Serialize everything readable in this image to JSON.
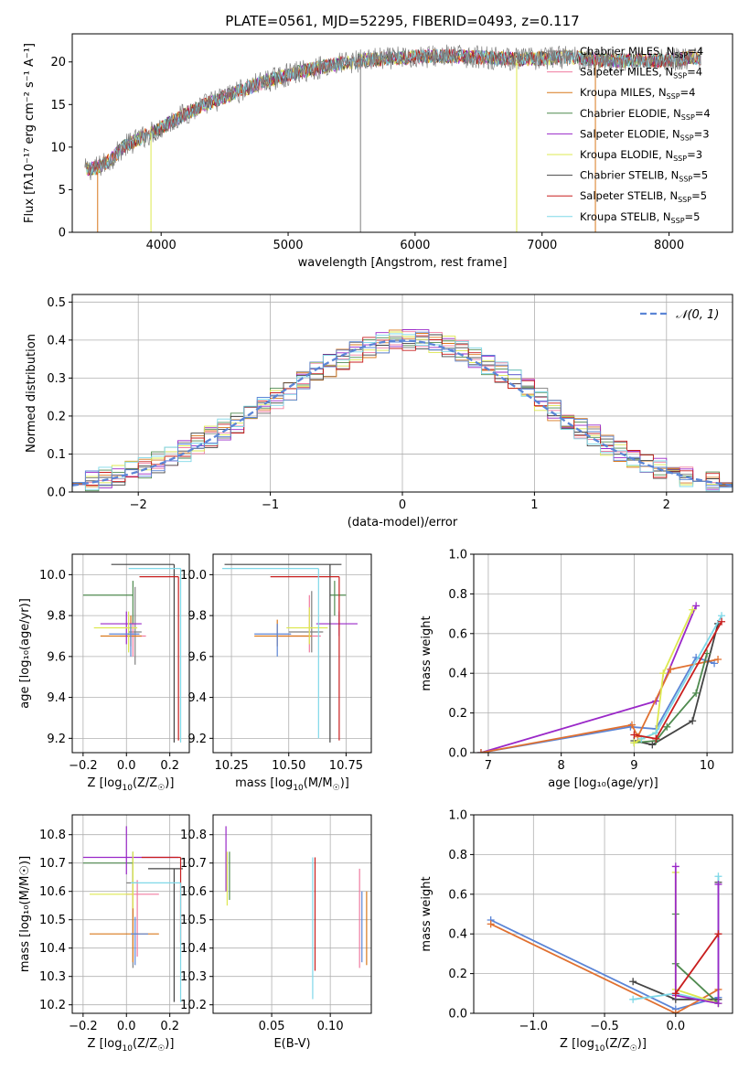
{
  "figure": {
    "title": "PLATE=0561, MJD=52295, FIBERID=0493, z=0.117"
  },
  "colors": {
    "series": [
      "#7f7f7f",
      "#f07ca0",
      "#d8781c",
      "#4f8a4f",
      "#9a28c8",
      "#dde850",
      "#444444",
      "#c81e1e",
      "#7fd8e8"
    ],
    "extra": [
      "#5b85d6",
      "#e07030"
    ],
    "grid": "#b0b0b0",
    "normal_curve": "#5b85d6"
  },
  "chart_data": [
    {
      "id": "spectrum",
      "type": "line",
      "xlabel": "wavelength [Angstrom, rest frame]",
      "ylabel": "Flux [fλ10⁻¹⁷ erg cm⁻² s⁻¹ A⁻¹]",
      "xlim": [
        3300,
        8500
      ],
      "ylim": [
        0,
        23.3
      ],
      "xticks": [
        4000,
        5000,
        6000,
        7000,
        8000
      ],
      "yticks": [
        0,
        5,
        10,
        15,
        20
      ],
      "grid": false,
      "legend_position": "upper right",
      "continuum": {
        "x": [
          3400,
          3500,
          3600,
          3700,
          3800,
          3900,
          4000,
          4200,
          4400,
          4600,
          4800,
          5000,
          5200,
          5400,
          5600,
          5800,
          6000,
          6200,
          6400,
          6600,
          6800,
          7000,
          7200,
          7400,
          7600,
          7800,
          8000,
          8200,
          8250
        ],
        "y": [
          7.3,
          7.6,
          8.5,
          10.0,
          10.8,
          11.5,
          12.3,
          14.0,
          15.3,
          16.5,
          17.6,
          18.5,
          19.2,
          19.8,
          20.2,
          20.4,
          20.6,
          20.7,
          20.6,
          20.5,
          20.3,
          20.4,
          20.6,
          20.3,
          20.1,
          20.2,
          20.2,
          20.5,
          20.3
        ]
      },
      "drops": [
        {
          "x": 3500,
          "series": 2
        },
        {
          "x": 3920,
          "series": 5
        },
        {
          "x": 5570,
          "series": 0
        },
        {
          "x": 6800,
          "series": 5
        },
        {
          "x": 7420,
          "series": 2
        }
      ],
      "series": [
        {
          "name": "Chabrier MILES, N_SSP=4",
          "label_main": "Chabrier MILES, N",
          "label_sub": "SSP",
          "label_end": "=4"
        },
        {
          "name": "Salpeter MILES, N_SSP=4",
          "label_main": "Salpeter MILES, N",
          "label_sub": "SSP",
          "label_end": "=4"
        },
        {
          "name": "Kroupa MILES, N_SSP=4",
          "label_main": "Kroupa MILES, N",
          "label_sub": "SSP",
          "label_end": "=4"
        },
        {
          "name": "Chabrier ELODIE, N_SSP=4",
          "label_main": "Chabrier ELODIE, N",
          "label_sub": "SSP",
          "label_end": "=4"
        },
        {
          "name": "Salpeter ELODIE, N_SSP=3",
          "label_main": "Salpeter ELODIE, N",
          "label_sub": "SSP",
          "label_end": "=3"
        },
        {
          "name": "Kroupa ELODIE, N_SSP=3",
          "label_main": "Kroupa ELODIE, N",
          "label_sub": "SSP",
          "label_end": "=3"
        },
        {
          "name": "Chabrier STELIB, N_SSP=5",
          "label_main": "Chabrier STELIB, N",
          "label_sub": "SSP",
          "label_end": "=5"
        },
        {
          "name": "Salpeter STELIB, N_SSP=5",
          "label_main": "Salpeter STELIB, N",
          "label_sub": "SSP",
          "label_end": "=5"
        },
        {
          "name": "Kroupa STELIB, N_SSP=5",
          "label_main": "Kroupa STELIB, N",
          "label_sub": "SSP",
          "label_end": "=5"
        }
      ]
    },
    {
      "id": "residuals",
      "type": "histogram",
      "xlabel": "(data-model)/error",
      "ylabel": "Normed distribution",
      "xlim": [
        -2.5,
        2.5
      ],
      "ylim": [
        0,
        0.52
      ],
      "xticks": [
        -2,
        -1,
        0,
        1,
        2
      ],
      "yticks": [
        0.0,
        0.1,
        0.2,
        0.3,
        0.4,
        0.5
      ],
      "grid": true,
      "legend_position": "upper right",
      "legend": "𝒩(0, 1)",
      "bin_width": 0.1,
      "reference_curve": "normal(0,1)"
    },
    {
      "id": "age-vs-Z",
      "type": "errorbar",
      "xlabel_main": "Z [log",
      "xlabel_tail": "(Z/Z",
      "ylabel": "age  [log₁₀(age/yr)]",
      "xlim": [
        -0.25,
        0.29
      ],
      "ylim": [
        9.13,
        10.1
      ],
      "xticks": [
        -0.2,
        0.0,
        0.2
      ],
      "yticks": [
        9.2,
        9.4,
        9.6,
        9.8,
        10.0
      ],
      "grid": true,
      "points": [
        {
          "x": 0.04,
          "y": 9.72,
          "xerr": [
            0.03,
            0.03
          ],
          "yerr": [
            0.16,
            0.22
          ],
          "c": 0
        },
        {
          "x": 0.03,
          "y": 9.7,
          "xerr": [
            0.06,
            0.06
          ],
          "yerr": [
            0.1,
            0.1
          ],
          "c": 1
        },
        {
          "x": 0.02,
          "y": 9.7,
          "xerr": [
            0.14,
            0.05
          ],
          "yerr": [
            0.05,
            0.1
          ],
          "c": 2
        },
        {
          "x": 0.03,
          "y": 9.9,
          "xerr": [
            0.23,
            0.0
          ],
          "yerr": [
            0.14,
            0.07
          ],
          "c": 3
        },
        {
          "x": 0.0,
          "y": 9.76,
          "xerr": [
            0.12,
            0.07
          ],
          "yerr": [
            0.1,
            0.06
          ],
          "c": 4
        },
        {
          "x": 0.01,
          "y": 9.74,
          "xerr": [
            0.16,
            0.04
          ],
          "yerr": [
            0.12,
            0.08
          ],
          "c": 5
        },
        {
          "x": 0.22,
          "y": 10.05,
          "xerr": [
            0.29,
            0.0
          ],
          "yerr": [
            0.87,
            0.0
          ],
          "c": 6
        },
        {
          "x": 0.24,
          "y": 9.99,
          "xerr": [
            0.18,
            0.0
          ],
          "yerr": [
            0.8,
            0.0
          ],
          "c": 7
        },
        {
          "x": 0.25,
          "y": 10.03,
          "xerr": [
            0.24,
            0.0
          ],
          "yerr": [
            0.85,
            0.0
          ],
          "c": 8
        },
        {
          "x": 0.02,
          "y": 9.71,
          "xerr": [
            0.1,
            0.04
          ],
          "yerr": [
            0.11,
            0.05
          ],
          "c": 9
        }
      ]
    },
    {
      "id": "age-vs-mass",
      "type": "errorbar",
      "xlabel_main": "mass [log",
      "xlabel_tail": "(M/M",
      "ylabel": "",
      "xlim": [
        10.17,
        10.86
      ],
      "ylim": [
        9.13,
        10.1
      ],
      "xticks": [
        10.25,
        10.5,
        10.75
      ],
      "yticks": [
        9.2,
        9.4,
        9.6,
        9.8,
        10.0
      ],
      "grid": true,
      "points": [
        {
          "x": 10.6,
          "y": 9.72,
          "xerr": [
            0.1,
            0.05
          ],
          "yerr": [
            0.1,
            0.2
          ],
          "c": 0
        },
        {
          "x": 10.59,
          "y": 9.7,
          "xerr": [
            0.13,
            0.05
          ],
          "yerr": [
            0.08,
            0.2
          ],
          "c": 1
        },
        {
          "x": 10.45,
          "y": 9.7,
          "xerr": [
            0.1,
            0.15
          ],
          "yerr": [
            0.05,
            0.08
          ],
          "c": 2
        },
        {
          "x": 10.7,
          "y": 9.9,
          "xerr": [
            0.02,
            0.05
          ],
          "yerr": [
            0.1,
            0.07
          ],
          "c": 3
        },
        {
          "x": 10.72,
          "y": 9.76,
          "xerr": [
            0.1,
            0.08
          ],
          "yerr": [
            0.06,
            0.06
          ],
          "c": 4
        },
        {
          "x": 10.59,
          "y": 9.74,
          "xerr": [
            0.1,
            0.08
          ],
          "yerr": [
            0.08,
            0.1
          ],
          "c": 5
        },
        {
          "x": 10.68,
          "y": 10.05,
          "xerr": [
            0.46,
            0.05
          ],
          "yerr": [
            0.87,
            0.0
          ],
          "c": 6
        },
        {
          "x": 10.72,
          "y": 9.99,
          "xerr": [
            0.3,
            0.0
          ],
          "yerr": [
            0.8,
            0.0
          ],
          "c": 7
        },
        {
          "x": 10.63,
          "y": 10.03,
          "xerr": [
            0.42,
            0.0
          ],
          "yerr": [
            0.83,
            0.0
          ],
          "c": 8
        },
        {
          "x": 10.45,
          "y": 9.71,
          "xerr": [
            0.1,
            0.06
          ],
          "yerr": [
            0.11,
            0.05
          ],
          "c": 9
        }
      ]
    },
    {
      "id": "weight-vs-age",
      "type": "line",
      "xlabel": "age  [log₁₀(age/yr)]",
      "ylabel": "mass weight",
      "xlim": [
        6.8,
        10.35
      ],
      "ylim": [
        0,
        1.0
      ],
      "xticks": [
        7,
        8,
        9,
        10
      ],
      "yticks": [
        0.0,
        0.2,
        0.4,
        0.6,
        0.8,
        1.0
      ],
      "grid": true,
      "series": [
        {
          "x": [
            6.9,
            9.3,
            9.85
          ],
          "y": [
            0.0,
            0.26,
            0.74
          ],
          "c": 4
        },
        {
          "x": [
            6.9,
            8.95,
            9.3,
            9.85,
            10.1
          ],
          "y": [
            0.0,
            0.13,
            0.12,
            0.48,
            0.45
          ],
          "c": 9
        },
        {
          "x": [
            6.9,
            8.97,
            9.05,
            9.5,
            10.15
          ],
          "y": [
            0.0,
            0.14,
            0.08,
            0.42,
            0.47
          ],
          "c": 10
        },
        {
          "x": [
            9.0,
            9.25,
            9.8,
            10.15
          ],
          "y": [
            0.06,
            0.04,
            0.16,
            0.65
          ],
          "c": 6
        },
        {
          "x": [
            9.0,
            9.3,
            9.45,
            9.85,
            10.0
          ],
          "y": [
            0.05,
            0.06,
            0.13,
            0.3,
            0.5
          ],
          "c": 3
        },
        {
          "x": [
            9.0,
            9.3,
            9.4,
            9.8
          ],
          "y": [
            0.05,
            0.1,
            0.4,
            0.72
          ],
          "c": 5
        },
        {
          "x": [
            9.1,
            9.3,
            10.2
          ],
          "y": [
            0.07,
            0.1,
            0.69
          ],
          "c": 8
        },
        {
          "x": [
            9.0,
            9.3,
            10.2
          ],
          "y": [
            0.09,
            0.07,
            0.66
          ],
          "c": 7
        }
      ]
    },
    {
      "id": "mass-vs-Z",
      "type": "errorbar",
      "xlabel_main": "Z [log",
      "xlabel_tail": "(Z/Z",
      "ylabel": "mass [log₁₀(M/M☉)]",
      "xlim": [
        -0.25,
        0.29
      ],
      "ylim": [
        10.17,
        10.87
      ],
      "xticks": [
        -0.2,
        0.0,
        0.2
      ],
      "yticks": [
        10.2,
        10.3,
        10.4,
        10.5,
        10.6,
        10.7,
        10.8
      ],
      "grid": true,
      "points": [
        {
          "x": 0.03,
          "y": 10.63,
          "xerr": [
            0.03,
            0.02
          ],
          "yerr": [
            0.3,
            0.07
          ],
          "c": 0
        },
        {
          "x": 0.05,
          "y": 10.59,
          "xerr": [
            0.05,
            0.1
          ],
          "yerr": [
            0.22,
            0.05
          ],
          "c": 1
        },
        {
          "x": 0.03,
          "y": 10.45,
          "xerr": [
            0.2,
            0.12
          ],
          "yerr": [
            0.1,
            0.27
          ],
          "c": 2
        },
        {
          "x": 0.03,
          "y": 10.7,
          "xerr": [
            0.23,
            0.0
          ],
          "yerr": [
            0.07,
            0.04
          ],
          "c": 3
        },
        {
          "x": 0.0,
          "y": 10.72,
          "xerr": [
            0.2,
            0.24
          ],
          "yerr": [
            0.06,
            0.11
          ],
          "c": 4
        },
        {
          "x": 0.03,
          "y": 10.59,
          "xerr": [
            0.2,
            0.0
          ],
          "yerr": [
            0.05,
            0.15
          ],
          "c": 5
        },
        {
          "x": 0.22,
          "y": 10.68,
          "xerr": [
            0.12,
            0.04
          ],
          "yerr": [
            0.47,
            0.0
          ],
          "c": 6
        },
        {
          "x": 0.25,
          "y": 10.72,
          "xerr": [
            0.18,
            0.0
          ],
          "yerr": [
            0.3,
            0.0
          ],
          "c": 7
        },
        {
          "x": 0.25,
          "y": 10.63,
          "xerr": [
            0.23,
            0.0
          ],
          "yerr": [
            0.42,
            0.0
          ],
          "c": 8
        },
        {
          "x": 0.04,
          "y": 10.45,
          "xerr": [
            0.02,
            0.06
          ],
          "yerr": [
            0.11,
            0.06
          ],
          "c": 9
        }
      ]
    },
    {
      "id": "mass-vs-ebv",
      "type": "errorbar",
      "xlabel": "E(B-V)",
      "ylabel": "",
      "xlim": [
        0.0,
        0.135
      ],
      "ylim": [
        10.17,
        10.87
      ],
      "xticks": [
        0.05,
        0.1
      ],
      "yticks": [
        10.2,
        10.3,
        10.4,
        10.5,
        10.6,
        10.7,
        10.8
      ],
      "grid": true,
      "points": [
        {
          "x": 0.011,
          "y": 10.7,
          "xerr": [
            0,
            0
          ],
          "yerr": [
            0.1,
            0.13
          ],
          "c": 4
        },
        {
          "x": 0.012,
          "y": 10.68,
          "xerr": [
            0,
            0
          ],
          "yerr": [
            0.13,
            0.06
          ],
          "c": 5
        },
        {
          "x": 0.014,
          "y": 10.66,
          "xerr": [
            0,
            0
          ],
          "yerr": [
            0.09,
            0.08
          ],
          "c": 3
        },
        {
          "x": 0.085,
          "y": 10.72,
          "xerr": [
            0,
            0
          ],
          "yerr": [
            0.5,
            0.0
          ],
          "c": 8
        },
        {
          "x": 0.087,
          "y": 10.72,
          "xerr": [
            0,
            0
          ],
          "yerr": [
            0.4,
            0.0
          ],
          "c": 7
        },
        {
          "x": 0.125,
          "y": 10.68,
          "xerr": [
            0,
            0
          ],
          "yerr": [
            0.35,
            0.0
          ],
          "c": 1
        },
        {
          "x": 0.127,
          "y": 10.6,
          "xerr": [
            0,
            0
          ],
          "yerr": [
            0.25,
            0.0
          ],
          "c": 9
        },
        {
          "x": 0.131,
          "y": 10.6,
          "xerr": [
            0,
            0
          ],
          "yerr": [
            0.26,
            0.0
          ],
          "c": 2
        }
      ]
    },
    {
      "id": "weight-vs-Z",
      "type": "line",
      "xlabel_main": "Z [log",
      "xlabel_tail": "(Z/Z",
      "ylabel": "mass weight",
      "xlim": [
        -1.42,
        0.4
      ],
      "ylim": [
        0,
        1.0
      ],
      "xticks": [
        -1.0,
        -0.5,
        0.0
      ],
      "yticks": [
        0.0,
        0.2,
        0.4,
        0.6,
        0.8,
        1.0
      ],
      "grid": true,
      "series": [
        {
          "x": [
            -1.3,
            0.0,
            0.3
          ],
          "y": [
            0.47,
            0.02,
            0.08
          ],
          "c": 9
        },
        {
          "x": [
            -1.3,
            0.0,
            0.3
          ],
          "y": [
            0.45,
            0.0,
            0.12
          ],
          "c": 10
        },
        {
          "x": [
            -0.3,
            0.0,
            0.3,
            0.3
          ],
          "y": [
            0.16,
            0.07,
            0.07,
            0.66
          ],
          "c": 6
        },
        {
          "x": [
            -0.3,
            0.0,
            0.3,
            0.3
          ],
          "y": [
            0.07,
            0.1,
            0.05,
            0.69
          ],
          "c": 8
        },
        {
          "x": [
            0.0,
            0.0,
            0.3
          ],
          "y": [
            0.5,
            0.25,
            0.05
          ],
          "c": 3
        },
        {
          "x": [
            0.0,
            0.0,
            0.3
          ],
          "y": [
            0.71,
            0.12,
            0.05
          ],
          "c": 5
        },
        {
          "x": [
            0.0,
            0.0,
            0.3,
            0.3
          ],
          "y": [
            0.74,
            0.09,
            0.05,
            0.65
          ],
          "c": 4
        },
        {
          "x": [
            0.0,
            0.3
          ],
          "y": [
            0.1,
            0.4
          ],
          "c": 7
        }
      ]
    }
  ]
}
